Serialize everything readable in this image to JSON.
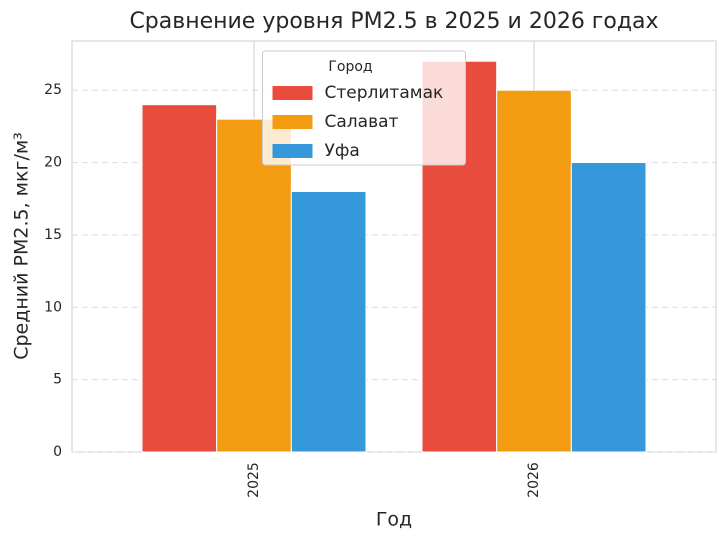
{
  "chart_data": {
    "type": "bar",
    "title": "Сравнение уровня PM2.5 в 2025 и 2026 годах",
    "x_label": "Год",
    "y_label": "Средний PM2.5, мкг/м³",
    "categories": [
      "2025",
      "2026"
    ],
    "series": [
      {
        "name": "Стерлитамак",
        "color": "#e74c3c",
        "values": [
          24,
          27
        ]
      },
      {
        "name": "Салават",
        "color": "#f39c12",
        "values": [
          23,
          25
        ]
      },
      {
        "name": "Уфа",
        "color": "#3498db",
        "values": [
          18,
          20
        ]
      }
    ],
    "ylim": [
      0,
      28.4
    ],
    "yticks": [
      0,
      5,
      10,
      15,
      20,
      25
    ],
    "grid": true,
    "legend_title": "Город",
    "legend_position": "upper center"
  }
}
